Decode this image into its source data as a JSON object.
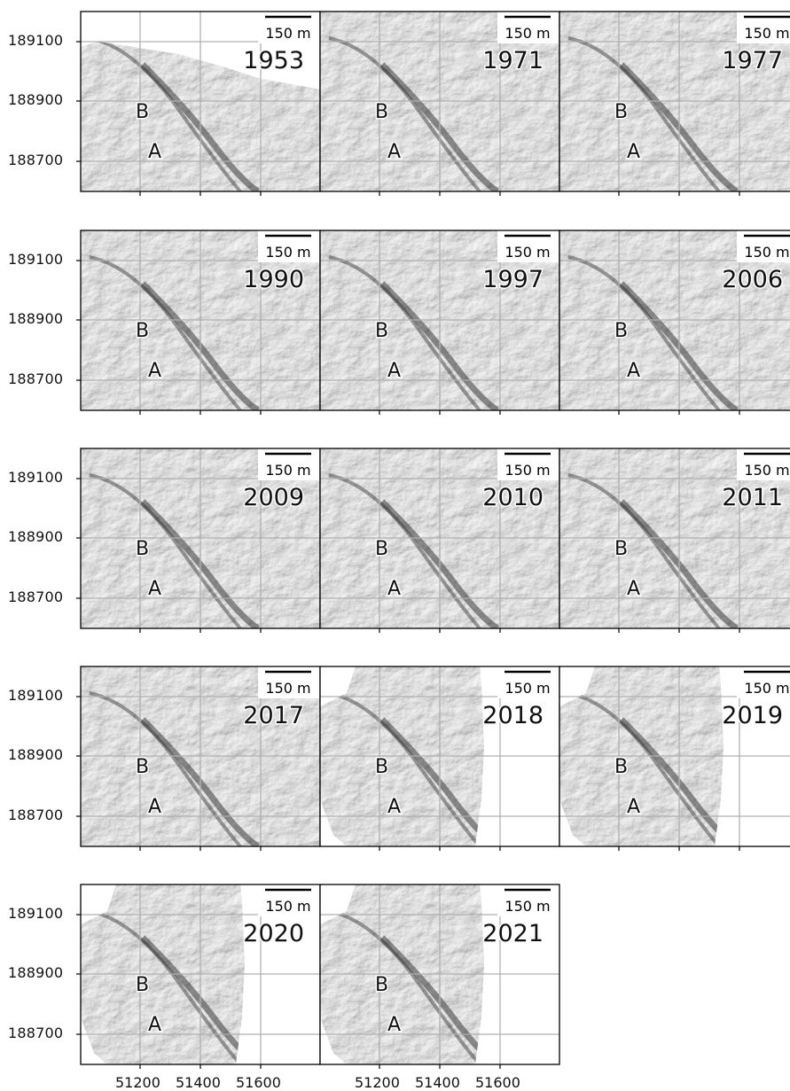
{
  "figure": {
    "scale_bar_label": "150 m",
    "y_ticks": [
      "189100",
      "188900",
      "188700"
    ],
    "x_ticks": [
      "51200",
      "51400",
      "51600"
    ],
    "point_labels": [
      "B",
      "A"
    ],
    "panels": [
      {
        "year": "1953",
        "coverage": "partial-top-missing"
      },
      {
        "year": "1971",
        "coverage": "full"
      },
      {
        "year": "1977",
        "coverage": "full"
      },
      {
        "year": "1990",
        "coverage": "full"
      },
      {
        "year": "1997",
        "coverage": "full"
      },
      {
        "year": "2006",
        "coverage": "full"
      },
      {
        "year": "2009",
        "coverage": "full"
      },
      {
        "year": "2010",
        "coverage": "full"
      },
      {
        "year": "2011",
        "coverage": "full"
      },
      {
        "year": "2017",
        "coverage": "full"
      },
      {
        "year": "2018",
        "coverage": "partial"
      },
      {
        "year": "2019",
        "coverage": "partial"
      },
      {
        "year": "2020",
        "coverage": "partial"
      },
      {
        "year": "2021",
        "coverage": "partial"
      }
    ]
  }
}
